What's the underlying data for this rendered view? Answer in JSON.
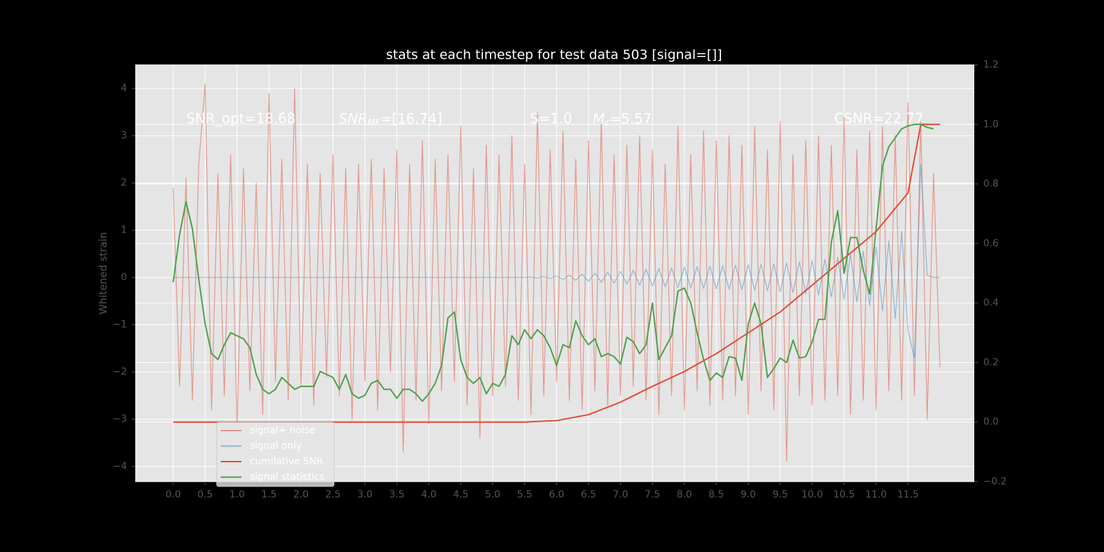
{
  "chart_data": {
    "type": "line",
    "title": "stats at each timestep for test data 503 [signal=[]]",
    "ylabel": "Whitened strain",
    "annotations": [
      {
        "text": "SNR_opt=18.68"
      },
      {
        "base": "SNR",
        "sub": "MF",
        "rest": "=[16.74]"
      },
      {
        "text": "S=1.0"
      },
      {
        "base": "M",
        "sub": "c",
        "rest": "=5.57"
      },
      {
        "text": "CSNR=22.77"
      }
    ],
    "xlim": [
      -0.594,
      12.537
    ],
    "xticks": [
      {
        "value": 0,
        "label": "0.0"
      },
      0.5,
      {
        "value": 1,
        "label": "1.0"
      },
      1.5,
      {
        "value": 2,
        "label": "2.0"
      },
      2.5,
      {
        "value": 3,
        "label": "3.0"
      },
      3.5,
      {
        "value": 4,
        "label": "4.0"
      },
      4.5,
      {
        "value": 5,
        "label": "5.0"
      },
      5.5,
      {
        "value": 6,
        "label": "6.0"
      },
      6.5,
      {
        "value": 7,
        "label": "7.0"
      },
      7.5,
      {
        "value": 8,
        "label": "8.0"
      },
      8.5,
      {
        "value": 9,
        "label": "9.0"
      },
      9.5,
      {
        "value": 10,
        "label": "10.0"
      },
      10.5,
      {
        "value": 11,
        "label": "11.0"
      },
      11.5
    ],
    "ylim": [
      -4.32,
      4.5
    ],
    "yticks": [
      {
        "value": -4,
        "label": "−4"
      },
      {
        "value": -3,
        "label": "−3"
      },
      {
        "value": -2,
        "label": "−2"
      },
      {
        "value": -1,
        "label": "−1"
      },
      0,
      1,
      2,
      3,
      4
    ],
    "y2lim": [
      -0.2,
      1.2
    ],
    "y2ticks": [
      {
        "value": -0.2,
        "label": "−0.2"
      },
      {
        "value": 0,
        "label": "0.0"
      },
      0.2,
      0.4,
      0.6,
      0.8,
      {
        "value": 1,
        "label": "1.0"
      },
      1.2
    ],
    "grid": true,
    "legend": "lower left",
    "series": [
      {
        "name": "signal+ noise",
        "color": "#E24A33",
        "alpha": 0.5,
        "axis": "y",
        "x": [
          0,
          0.1,
          0.2,
          0.3,
          0.4,
          0.5,
          0.6,
          0.7,
          0.8,
          0.9,
          1,
          1.1,
          1.2,
          1.3,
          1.4,
          1.5,
          1.6,
          1.7,
          1.8,
          1.9,
          2,
          2.1,
          2.2,
          2.3,
          2.4,
          2.5,
          2.6,
          2.7,
          2.8,
          2.9,
          3,
          3.1,
          3.2,
          3.3,
          3.4,
          3.5,
          3.6,
          3.7,
          3.8,
          3.9,
          4,
          4.1,
          4.2,
          4.3,
          4.4,
          4.5,
          4.6,
          4.7,
          4.8,
          4.9,
          5,
          5.1,
          5.2,
          5.3,
          5.4,
          5.5,
          5.6,
          5.7,
          5.8,
          5.9,
          6,
          6.1,
          6.2,
          6.3,
          6.4,
          6.5,
          6.6,
          6.7,
          6.8,
          6.9,
          7,
          7.1,
          7.2,
          7.3,
          7.4,
          7.5,
          7.6,
          7.7,
          7.8,
          7.9,
          8,
          8.1,
          8.2,
          8.3,
          8.4,
          8.5,
          8.6,
          8.7,
          8.8,
          8.9,
          9,
          9.1,
          9.2,
          9.3,
          9.4,
          9.5,
          9.6,
          9.7,
          9.8,
          9.9,
          10,
          10.1,
          10.2,
          10.3,
          10.4,
          10.5,
          10.6,
          10.7,
          10.8,
          10.9,
          11,
          11.1,
          11.2,
          11.3,
          11.4,
          11.5,
          11.6,
          11.7,
          11.8,
          11.9,
          12
        ],
        "values": [
          1.9,
          -2.3,
          2.1,
          -2.6,
          2.4,
          4.1,
          -2.8,
          2.2,
          -2.5,
          2.6,
          -3.2,
          2.3,
          -2.4,
          2.0,
          -2.9,
          3.9,
          -2.2,
          2.5,
          -2.6,
          4.0,
          -2.3,
          2.4,
          -2.7,
          2.2,
          -2.1,
          2.6,
          -2.5,
          2.3,
          -3.0,
          2.4,
          -2.2,
          2.5,
          -2.8,
          2.3,
          -2.0,
          2.7,
          -3.7,
          2.4,
          -2.6,
          2.9,
          -3.1,
          2.5,
          -2.4,
          2.6,
          -2.2,
          3.2,
          -2.7,
          2.3,
          -3.4,
          2.8,
          -2.5,
          2.6,
          -2.3,
          3.0,
          -2.6,
          2.4,
          -2.9,
          3.5,
          -2.5,
          2.7,
          -2.2,
          3.1,
          -2.6,
          2.5,
          -2.8,
          2.9,
          -2.4,
          3.3,
          -2.7,
          2.6,
          -2.5,
          2.8,
          -2.3,
          3.0,
          -2.6,
          2.7,
          -2.9,
          2.4,
          -2.5,
          3.2,
          -2.8,
          2.6,
          -2.4,
          3.1,
          -2.7,
          2.9,
          -2.6,
          3.0,
          -2.5,
          2.8,
          -2.9,
          3.2,
          -2.4,
          2.7,
          -2.8,
          3.3,
          -3.9,
          2.6,
          -2.5,
          2.9,
          -2.7,
          3.0,
          -2.6,
          2.8,
          -2.5,
          3.4,
          -2.9,
          2.7,
          -2.6,
          3.1,
          -2.8,
          3.2,
          -2.4,
          3.0,
          -2.6,
          3.7,
          -2.5,
          3.3,
          -3.0,
          2.2,
          -1.9
        ]
      },
      {
        "name": "signal only",
        "color": "#348ABD",
        "alpha": 0.5,
        "axis": "y",
        "x": [
          0,
          0.1,
          0.2,
          0.3,
          0.4,
          0.5,
          0.6,
          0.7,
          0.8,
          0.9,
          1,
          1.1,
          1.2,
          1.3,
          1.4,
          1.5,
          1.6,
          1.7,
          1.8,
          1.9,
          2,
          2.1,
          2.2,
          2.3,
          2.4,
          2.5,
          2.6,
          2.7,
          2.8,
          2.9,
          3,
          3.1,
          3.2,
          3.3,
          3.4,
          3.5,
          3.6,
          3.7,
          3.8,
          3.9,
          4,
          4.1,
          4.2,
          4.3,
          4.4,
          4.5,
          4.6,
          4.7,
          4.8,
          4.9,
          5,
          5.1,
          5.2,
          5.3,
          5.4,
          5.5,
          5.6,
          5.7,
          5.8,
          5.9,
          6,
          6.1,
          6.2,
          6.3,
          6.4,
          6.5,
          6.6,
          6.7,
          6.8,
          6.9,
          7,
          7.1,
          7.2,
          7.3,
          7.4,
          7.5,
          7.6,
          7.7,
          7.8,
          7.9,
          8,
          8.1,
          8.2,
          8.3,
          8.4,
          8.5,
          8.6,
          8.7,
          8.8,
          8.9,
          9,
          9.1,
          9.2,
          9.3,
          9.4,
          9.5,
          9.6,
          9.7,
          9.8,
          9.9,
          10,
          10.1,
          10.2,
          10.3,
          10.4,
          10.5,
          10.6,
          10.7,
          10.8,
          10.9,
          11,
          11.1,
          11.2,
          11.3,
          11.4,
          11.5,
          11.6,
          11.7,
          11.8,
          11.9,
          12
        ],
        "values": [
          0,
          0,
          0,
          0,
          0,
          0,
          0,
          0,
          0,
          0,
          0,
          0,
          0,
          0,
          0,
          0,
          0,
          0,
          0,
          0,
          0,
          0,
          0,
          0,
          0,
          0,
          0,
          0,
          0,
          0,
          0,
          0,
          0,
          0,
          0,
          0,
          0,
          0,
          0,
          0,
          0,
          0,
          0,
          0,
          0,
          0,
          0,
          0,
          0,
          0,
          0,
          0,
          0,
          0,
          0,
          0,
          0.01,
          -0.01,
          0.02,
          -0.02,
          0.03,
          -0.04,
          0.05,
          -0.06,
          0.07,
          -0.08,
          0.09,
          -0.1,
          0.11,
          -0.12,
          0.13,
          -0.14,
          0.15,
          -0.16,
          0.17,
          -0.18,
          0.19,
          -0.2,
          0.2,
          -0.21,
          0.22,
          -0.22,
          0.23,
          -0.23,
          0.24,
          -0.24,
          0.25,
          -0.25,
          0.26,
          -0.26,
          0.27,
          -0.27,
          0.28,
          -0.28,
          0.29,
          -0.3,
          0.31,
          -0.32,
          0.33,
          -0.34,
          0.35,
          -0.37,
          0.39,
          -0.41,
          0.43,
          -0.46,
          0.49,
          -0.52,
          0.56,
          -0.6,
          0.65,
          -0.71,
          0.78,
          -0.87,
          0.98,
          -1.12,
          -1.7,
          2.4,
          0.05,
          0,
          0
        ]
      },
      {
        "name": "cumilative SNR",
        "color": "#E24A33",
        "alpha": 1,
        "axis": "y2",
        "x": [
          0,
          5.5,
          6.0,
          6.5,
          7.0,
          7.5,
          8.0,
          8.5,
          9.0,
          9.5,
          10.0,
          10.5,
          11.0,
          11.5,
          11.7,
          12.0
        ],
        "values": [
          0,
          0,
          0.005,
          0.025,
          0.067,
          0.12,
          0.17,
          0.23,
          0.3,
          0.37,
          0.46,
          0.55,
          0.64,
          0.77,
          1.0,
          1.0
        ]
      },
      {
        "name": "signal statistics",
        "color": "#4c9f4c",
        "alpha": 1,
        "axis": "y2",
        "x": [
          0,
          0.1,
          0.2,
          0.3,
          0.4,
          0.5,
          0.6,
          0.7,
          0.8,
          0.9,
          1,
          1.1,
          1.2,
          1.3,
          1.4,
          1.5,
          1.6,
          1.7,
          1.8,
          1.9,
          2,
          2.1,
          2.2,
          2.3,
          2.4,
          2.5,
          2.6,
          2.7,
          2.8,
          2.9,
          3,
          3.1,
          3.2,
          3.3,
          3.4,
          3.5,
          3.6,
          3.7,
          3.8,
          3.9,
          4,
          4.1,
          4.2,
          4.3,
          4.4,
          4.5,
          4.6,
          4.7,
          4.8,
          4.9,
          5,
          5.1,
          5.2,
          5.3,
          5.4,
          5.5,
          5.6,
          5.7,
          5.8,
          5.9,
          6,
          6.1,
          6.2,
          6.3,
          6.4,
          6.5,
          6.6,
          6.7,
          6.8,
          6.9,
          7,
          7.1,
          7.2,
          7.3,
          7.4,
          7.5,
          7.6,
          7.7,
          7.8,
          7.9,
          8,
          8.1,
          8.2,
          8.3,
          8.4,
          8.5,
          8.6,
          8.7,
          8.8,
          8.9,
          9,
          9.1,
          9.2,
          9.3,
          9.4,
          9.5,
          9.6,
          9.7,
          9.8,
          9.9,
          10,
          10.1,
          10.2,
          10.3,
          10.4,
          10.5,
          10.6,
          10.7,
          10.8,
          10.9,
          11,
          11.1,
          11.2,
          11.3,
          11.4,
          11.5,
          11.6,
          11.7,
          11.8,
          11.9
        ],
        "values": [
          0.47,
          0.63,
          0.74,
          0.65,
          0.48,
          0.33,
          0.23,
          0.21,
          0.26,
          0.3,
          0.29,
          0.28,
          0.25,
          0.16,
          0.11,
          0.095,
          0.11,
          0.15,
          0.13,
          0.11,
          0.12,
          0.12,
          0.12,
          0.17,
          0.16,
          0.15,
          0.11,
          0.16,
          0.095,
          0.08,
          0.09,
          0.13,
          0.14,
          0.11,
          0.11,
          0.08,
          0.11,
          0.11,
          0.095,
          0.07,
          0.095,
          0.13,
          0.19,
          0.35,
          0.37,
          0.21,
          0.15,
          0.13,
          0.15,
          0.095,
          0.13,
          0.12,
          0.16,
          0.29,
          0.26,
          0.31,
          0.28,
          0.31,
          0.29,
          0.25,
          0.19,
          0.26,
          0.25,
          0.34,
          0.29,
          0.26,
          0.28,
          0.22,
          0.23,
          0.22,
          0.195,
          0.285,
          0.27,
          0.23,
          0.26,
          0.4,
          0.21,
          0.25,
          0.29,
          0.44,
          0.45,
          0.4,
          0.3,
          0.21,
          0.14,
          0.165,
          0.15,
          0.22,
          0.215,
          0.14,
          0.33,
          0.4,
          0.33,
          0.15,
          0.18,
          0.215,
          0.2,
          0.275,
          0.215,
          0.22,
          0.27,
          0.345,
          0.345,
          0.605,
          0.71,
          0.5,
          0.62,
          0.62,
          0.51,
          0.43,
          0.65,
          0.86,
          0.925,
          0.955,
          0.985,
          0.995,
          1.0,
          1.0,
          0.99,
          0.985
        ]
      }
    ]
  }
}
